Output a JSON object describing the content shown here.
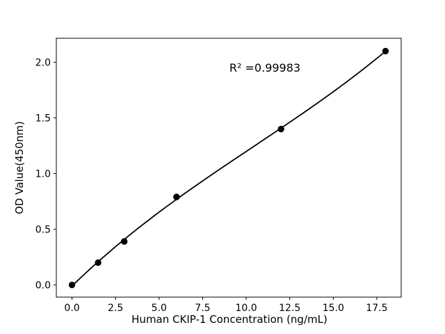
{
  "figure": {
    "background": "#ffffff"
  },
  "chart_data": {
    "type": "scatter",
    "title": "",
    "x": [
      0,
      1.5,
      3,
      6,
      12,
      18
    ],
    "y": [
      0.0,
      0.2,
      0.39,
      0.79,
      1.4,
      2.1
    ],
    "fit": "polynomial",
    "fit_degree": 3,
    "annotation": "R² =0.99983",
    "xlabel": "Human CKIP-1 Concentration (ng/mL)",
    "ylabel": "OD Value(450nm)",
    "xticks": [
      "0.0",
      "2.5",
      "5.0",
      "7.5",
      "10.0",
      "12.5",
      "15.0",
      "17.5"
    ],
    "yticks": [
      "0.0",
      "0.5",
      "1.0",
      "1.5",
      "2.0"
    ],
    "xlim": [
      -0.9,
      18.9
    ],
    "ylim": [
      -0.11,
      2.215
    ],
    "grid": false,
    "legend": "none",
    "marker_color": "#000000",
    "line_color": "#000000",
    "axis_color": "#000000"
  }
}
